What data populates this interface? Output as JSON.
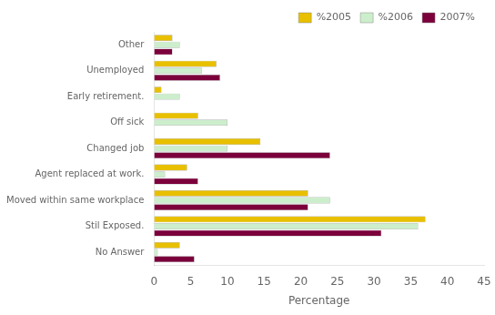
{
  "chart_data": {
    "type": "bar",
    "orientation": "horizontal",
    "categories": [
      "No Answer",
      "Stil Exposed.",
      "Moved within same workplace",
      "Agent replaced at work.",
      "Changed job",
      "Off sick",
      "Early retirement.",
      "Unemployed",
      "Other"
    ],
    "series": [
      {
        "name": "%2005",
        "color": "#E8C000",
        "values": [
          3.5,
          37,
          21,
          4.5,
          14.5,
          6,
          1,
          8.5,
          2.5
        ]
      },
      {
        "name": "%2006",
        "color": "#CCEECC",
        "values": [
          0.5,
          36,
          24,
          1.5,
          10,
          10,
          3.5,
          6.5,
          3.5
        ]
      },
      {
        "name": "2007%",
        "color": "#7B003B",
        "values": [
          5.5,
          31,
          21,
          6,
          24,
          0,
          0,
          9,
          2.5
        ]
      }
    ],
    "xlabel": "Percentage",
    "xlim": [
      0,
      45
    ],
    "xticks": [
      0,
      5,
      10,
      15,
      20,
      25,
      30,
      35,
      40,
      45
    ],
    "grid": false,
    "legend": "upper right"
  }
}
